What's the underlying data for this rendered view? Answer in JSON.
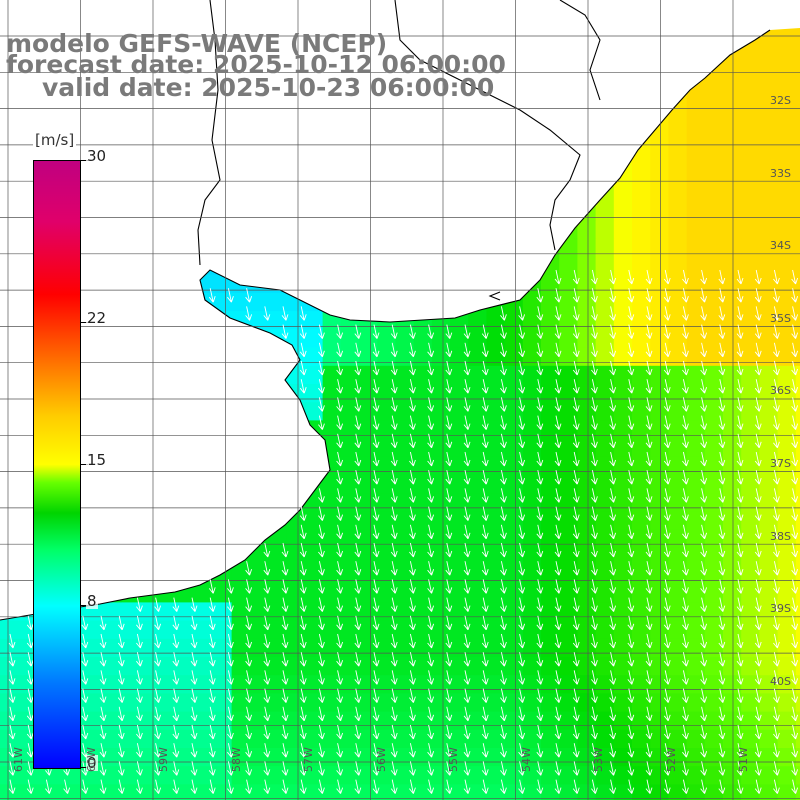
{
  "titles": {
    "line1": "modelo GEFS-WAVE (NCEP)",
    "line2": "forecast date: 2025-10-12 06:00:00",
    "line3": "valid date: 2025-10-23 06:00:00"
  },
  "colorbar": {
    "unit": "[m/s]",
    "ticks": [
      {
        "label": "30",
        "value": 30
      },
      {
        "label": "22",
        "value": 22
      },
      {
        "label": "15",
        "value": 15
      },
      {
        "label": "8",
        "value": 8
      },
      {
        "label": "0",
        "value": 0
      }
    ],
    "min": 0,
    "max": 30
  },
  "map": {
    "lat_labels": [
      "32S",
      "33S",
      "34S",
      "35S",
      "36S",
      "37S",
      "38S",
      "39S",
      "40S"
    ],
    "lon_labels": [
      "61W",
      "60W",
      "59W",
      "58W",
      "57W",
      "56W",
      "55W",
      "54W",
      "53W",
      "52W",
      "51W"
    ],
    "wind_direction": "from north",
    "land_color": "#ffffff",
    "grid_color": "#555555"
  }
}
